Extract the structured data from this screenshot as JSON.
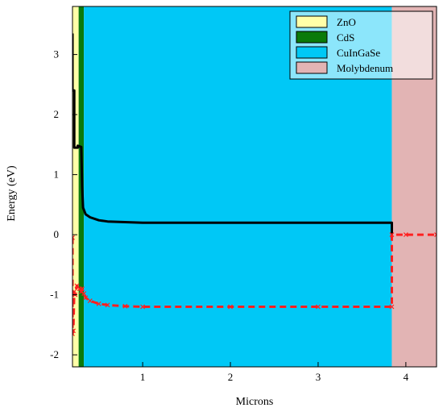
{
  "chart_data": {
    "type": "line",
    "xlabel": "Microns",
    "ylabel": "Energy (eV)",
    "xlim": [
      0.2,
      4.35
    ],
    "ylim": [
      -2.2,
      3.8
    ],
    "xticks": [
      1,
      2,
      3,
      4
    ],
    "yticks": [
      -2,
      -1,
      0,
      1,
      2,
      3
    ],
    "grid": false,
    "legend_position": "top-right",
    "layers": [
      {
        "name": "ZnO",
        "x_start": 0.2,
        "x_end": 0.27,
        "color": "#ffffa8"
      },
      {
        "name": "CdS",
        "x_start": 0.27,
        "x_end": 0.33,
        "color": "#0b7a0b"
      },
      {
        "name": "CuInGaSe",
        "x_start": 0.33,
        "x_end": 3.84,
        "color": "#00c8f6"
      },
      {
        "name": "Molybdenum",
        "x_start": 3.84,
        "x_end": 4.35,
        "color": "#e2b4b4"
      }
    ],
    "series": [
      {
        "color": "#000000",
        "style": "solid",
        "x": [
          0.2,
          0.2,
          0.22,
          0.22,
          0.26,
          0.26,
          0.3,
          0.31,
          0.32,
          0.35,
          0.4,
          0.5,
          0.6,
          0.8,
          1.0,
          2.0,
          3.0,
          3.84,
          3.84
        ],
        "y": [
          3.35,
          2.4,
          2.4,
          1.45,
          1.45,
          1.48,
          1.46,
          0.8,
          0.45,
          0.34,
          0.29,
          0.24,
          0.22,
          0.21,
          0.2,
          0.2,
          0.2,
          0.2,
          0.0
        ]
      },
      {
        "color": "#ff2020",
        "style": "dashed-markers",
        "x": [
          0.2,
          0.2,
          0.21,
          0.22,
          0.23,
          0.25,
          0.28,
          0.3,
          0.31,
          0.33,
          0.35,
          0.4,
          0.5,
          0.6,
          0.8,
          1.0,
          2.0,
          3.0,
          3.84,
          3.84,
          4.0,
          4.35
        ],
        "y": [
          -0.05,
          -1.65,
          -1.6,
          -0.95,
          -1.0,
          -0.85,
          -0.9,
          -0.95,
          -0.9,
          -0.98,
          -1.05,
          -1.1,
          -1.15,
          -1.17,
          -1.19,
          -1.2,
          -1.2,
          -1.2,
          -1.2,
          0.0,
          0.0,
          0.0
        ]
      }
    ]
  }
}
